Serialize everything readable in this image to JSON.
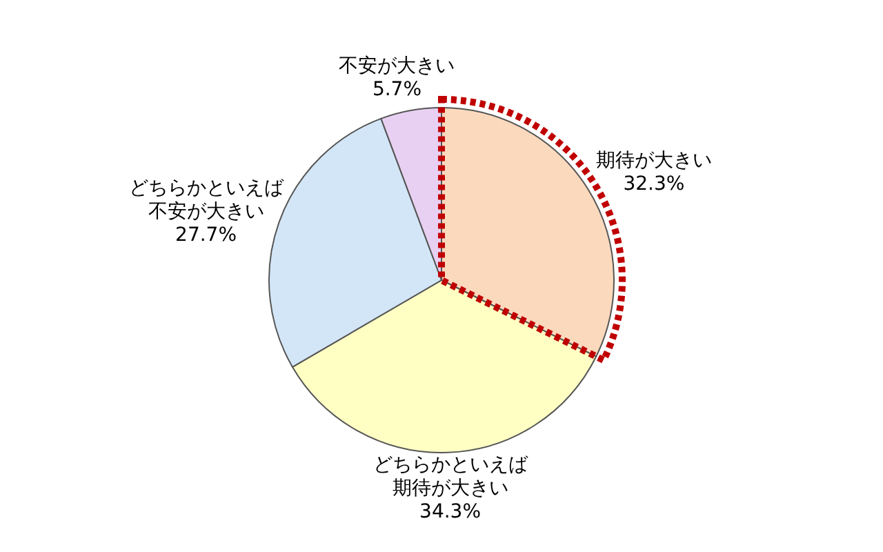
{
  "chart_data": {
    "type": "pie",
    "categories": [
      "期待が大きい",
      "どちらかといえば期待が大きい",
      "どちらかといえば不安が大きい",
      "不安が大きい"
    ],
    "values": [
      32.3,
      34.3,
      27.7,
      5.7
    ],
    "colors": [
      "#fbd9bd",
      "#ffffc4",
      "#d3e6f7",
      "#e8d0f2"
    ],
    "value_labels": [
      "32.3%",
      "34.3%",
      "27.7%",
      "5.7%"
    ]
  }
}
